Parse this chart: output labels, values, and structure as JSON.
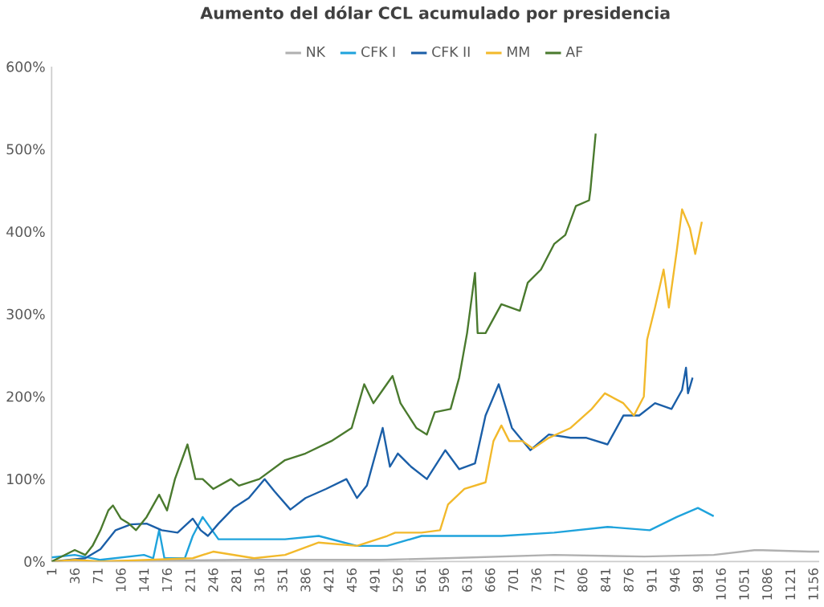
{
  "chart_data": {
    "type": "line",
    "title": "Aumento del dólar CCL acumulado por presidencia",
    "legend": "top",
    "grid": false,
    "marker": "none",
    "line_style": "solid",
    "xlim": [
      1,
      1165
    ],
    "xticks": [
      1,
      36,
      71,
      106,
      141,
      176,
      211,
      246,
      281,
      316,
      351,
      386,
      421,
      456,
      491,
      526,
      561,
      596,
      631,
      666,
      701,
      736,
      771,
      806,
      841,
      876,
      911,
      946,
      981,
      1016,
      1051,
      1086,
      1121,
      1156
    ],
    "ylim": [
      0,
      600
    ],
    "yticks": [
      {
        "value": 0,
        "label": "0%"
      },
      {
        "value": 100,
        "label": "100%"
      },
      {
        "value": 200,
        "label": "200%"
      },
      {
        "value": 300,
        "label": "300%"
      },
      {
        "value": 400,
        "label": "400%"
      },
      {
        "value": 500,
        "label": "500%"
      },
      {
        "value": 600,
        "label": "600%"
      }
    ],
    "series": [
      {
        "name": "NK",
        "color": "#b0b0b0",
        "x": [
          1,
          300,
          500,
          600,
          763,
          900,
          1005,
          1069,
          1150,
          1165
        ],
        "values": [
          0,
          2,
          2,
          4,
          8,
          6,
          8,
          14,
          12,
          12
        ]
      },
      {
        "name": "CFK I",
        "color": "#1fa3dc",
        "x": [
          1,
          36,
          75,
          141,
          155,
          164,
          172,
          203,
          215,
          230,
          254,
          308,
          355,
          406,
          464,
          510,
          562,
          683,
          763,
          844,
          908,
          949,
          981,
          1005
        ],
        "values": [
          5,
          8,
          2,
          8,
          4,
          38,
          4,
          4,
          31,
          54,
          27,
          27,
          27,
          31,
          19,
          19,
          31,
          31,
          35,
          42,
          38,
          54,
          65,
          55
        ]
      },
      {
        "name": "CFK II",
        "color": "#1b5fa8",
        "x": [
          1,
          52,
          75,
          98,
          121,
          145,
          168,
          192,
          215,
          227,
          238,
          254,
          277,
          300,
          324,
          339,
          363,
          386,
          417,
          448,
          464,
          479,
          503,
          514,
          526,
          546,
          570,
          598,
          619,
          643,
          659,
          679,
          699,
          727,
          755,
          788,
          812,
          844,
          868,
          892,
          916,
          941,
          957,
          963,
          966,
          973
        ],
        "values": [
          0,
          4,
          15,
          38,
          45,
          46,
          38,
          35,
          52,
          38,
          31,
          46,
          65,
          77,
          100,
          85,
          63,
          77,
          88,
          100,
          77,
          92,
          162,
          115,
          131,
          115,
          100,
          135,
          112,
          119,
          177,
          215,
          162,
          135,
          154,
          150,
          150,
          142,
          177,
          177,
          192,
          185,
          208,
          235,
          204,
          223
        ]
      },
      {
        "name": "MM",
        "color": "#f2b92b",
        "x": [
          1,
          36,
          75,
          215,
          246,
          308,
          355,
          406,
          464,
          510,
          522,
          562,
          590,
          602,
          627,
          659,
          671,
          683,
          695,
          715,
          731,
          755,
          788,
          820,
          840,
          868,
          884,
          899,
          904,
          916,
          929,
          937,
          949,
          957,
          969,
          977,
          987
        ],
        "values": [
          0,
          2,
          0,
          4,
          12,
          4,
          8,
          23,
          19,
          31,
          35,
          35,
          38,
          69,
          88,
          96,
          146,
          165,
          146,
          146,
          137,
          150,
          162,
          185,
          204,
          192,
          177,
          200,
          269,
          308,
          354,
          308,
          377,
          427,
          404,
          373,
          412
        ]
      },
      {
        "name": "AF",
        "color": "#4a7a2e",
        "x": [
          1,
          36,
          52,
          63,
          75,
          87,
          94,
          106,
          118,
          129,
          145,
          164,
          176,
          188,
          207,
          219,
          230,
          246,
          273,
          285,
          316,
          355,
          386,
          425,
          456,
          475,
          489,
          503,
          518,
          530,
          554,
          570,
          582,
          606,
          619,
          631,
          643,
          647,
          659,
          683,
          711,
          723,
          743,
          763,
          780,
          796,
          816,
          818,
          826
        ],
        "values": [
          0,
          14,
          8,
          19,
          38,
          62,
          68,
          52,
          46,
          38,
          54,
          81,
          62,
          100,
          142,
          100,
          100,
          88,
          100,
          92,
          100,
          123,
          131,
          146,
          162,
          215,
          192,
          208,
          225,
          192,
          162,
          154,
          181,
          185,
          223,
          277,
          350,
          277,
          277,
          312,
          304,
          338,
          354,
          385,
          396,
          431,
          438,
          450,
          519
        ]
      }
    ]
  }
}
